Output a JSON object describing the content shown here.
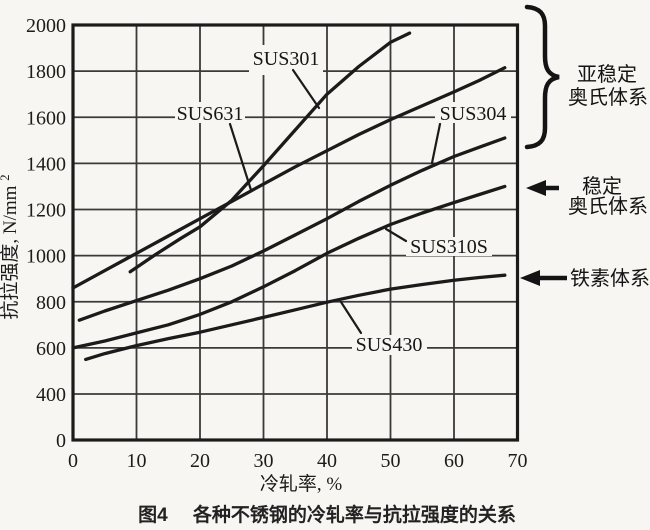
{
  "figure": {
    "caption_prefix": "图4",
    "caption_text": "各种不锈钢的冷轧率与抗拉强度的关系"
  },
  "chart_data": {
    "type": "line",
    "xlabel": "冷轧率, %",
    "ylabel": "抗拉强度, N/mm²",
    "ylabel_main": "抗拉强度, N/mm",
    "ylabel_sup": "2",
    "xlim": [
      0,
      70
    ],
    "x_ticks": [
      "0",
      "10",
      "20",
      "30",
      "40",
      "50",
      "60",
      "70"
    ],
    "y_ticks": [
      "2000",
      "1800",
      "1600",
      "1400",
      "1200",
      "1000",
      "800",
      "600",
      "400",
      "0"
    ],
    "grid": true,
    "legend_position": "labels-on-curves",
    "series": [
      {
        "name": "SUS301",
        "points": [
          [
            9,
            930
          ],
          [
            13,
            1005
          ],
          [
            17,
            1075
          ],
          [
            20,
            1125
          ],
          [
            25,
            1240
          ],
          [
            30,
            1390
          ],
          [
            35,
            1545
          ],
          [
            40,
            1700
          ],
          [
            45,
            1820
          ],
          [
            50,
            1925
          ],
          [
            53,
            1965
          ]
        ]
      },
      {
        "name": "SUS631",
        "points": [
          [
            0,
            860
          ],
          [
            5,
            935
          ],
          [
            10,
            1010
          ],
          [
            15,
            1085
          ],
          [
            20,
            1160
          ],
          [
            25,
            1235
          ],
          [
            30,
            1310
          ],
          [
            35,
            1385
          ],
          [
            40,
            1455
          ],
          [
            45,
            1525
          ],
          [
            50,
            1590
          ],
          [
            55,
            1650
          ],
          [
            60,
            1710
          ],
          [
            64,
            1760
          ],
          [
            68,
            1815
          ]
        ]
      },
      {
        "name": "SUS304",
        "points": [
          [
            1,
            720
          ],
          [
            5,
            760
          ],
          [
            10,
            805
          ],
          [
            15,
            850
          ],
          [
            20,
            900
          ],
          [
            25,
            955
          ],
          [
            30,
            1020
          ],
          [
            35,
            1090
          ],
          [
            40,
            1160
          ],
          [
            45,
            1235
          ],
          [
            50,
            1305
          ],
          [
            55,
            1370
          ],
          [
            60,
            1430
          ],
          [
            64,
            1470
          ],
          [
            68,
            1510
          ]
        ]
      },
      {
        "name": "SUS310S",
        "points": [
          [
            0,
            600
          ],
          [
            5,
            630
          ],
          [
            10,
            665
          ],
          [
            15,
            700
          ],
          [
            20,
            745
          ],
          [
            25,
            800
          ],
          [
            30,
            865
          ],
          [
            35,
            935
          ],
          [
            40,
            1010
          ],
          [
            45,
            1075
          ],
          [
            50,
            1135
          ],
          [
            55,
            1185
          ],
          [
            60,
            1230
          ],
          [
            64,
            1265
          ],
          [
            68,
            1300
          ]
        ]
      },
      {
        "name": "SUS430",
        "points": [
          [
            2,
            550
          ],
          [
            5,
            575
          ],
          [
            10,
            610
          ],
          [
            15,
            640
          ],
          [
            20,
            668
          ],
          [
            25,
            700
          ],
          [
            30,
            732
          ],
          [
            35,
            765
          ],
          [
            40,
            798
          ],
          [
            45,
            828
          ],
          [
            50,
            855
          ],
          [
            55,
            875
          ],
          [
            60,
            893
          ],
          [
            64,
            905
          ],
          [
            68,
            915
          ]
        ]
      }
    ],
    "annotations": [
      {
        "type": "brace",
        "lines": [
          "亚稳定",
          "奥氏体系"
        ],
        "applies_to": [
          "SUS301",
          "SUS631",
          "SUS304"
        ]
      },
      {
        "type": "arrow",
        "lines": [
          "稳定",
          "奥氏体系"
        ],
        "applies_to": [
          "SUS310S"
        ]
      },
      {
        "type": "arrow",
        "lines": [
          "铁素体系"
        ],
        "applies_to": [
          "SUS430"
        ]
      }
    ]
  },
  "colors": {
    "ink": "#1b1b1b",
    "grid": "#3a3a3a",
    "paper": "#f7f6f2"
  }
}
